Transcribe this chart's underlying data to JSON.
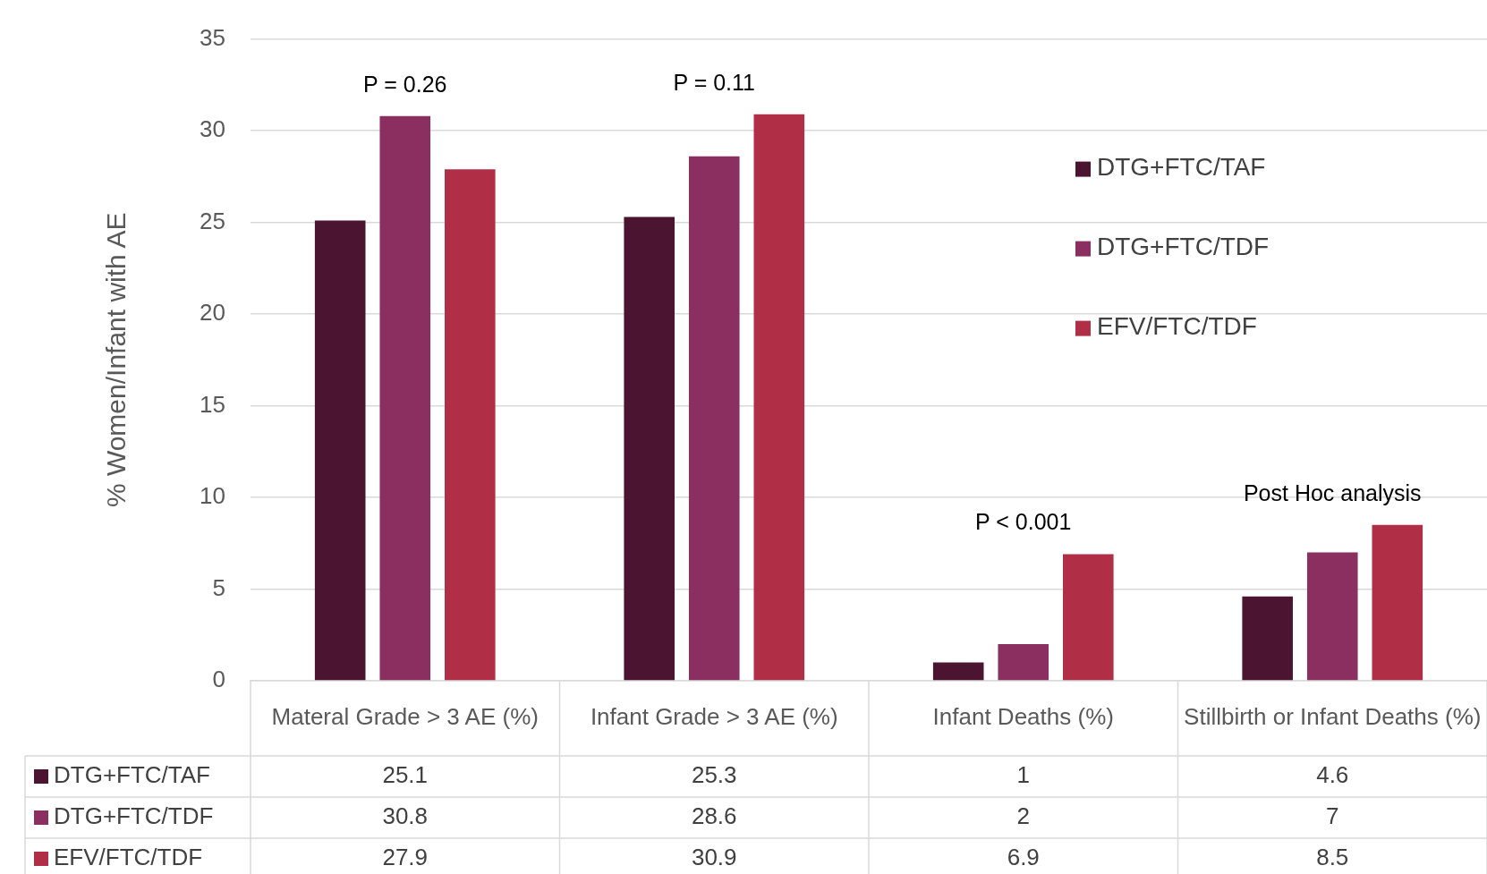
{
  "chart_data": {
    "type": "bar",
    "ylabel": "% Women/Infant with AE",
    "categories": [
      "Materal Grade > 3 AE (%)",
      "Infant Grade > 3 AE (%)",
      "Infant Deaths (%)",
      "Stillbirth or Infant Deaths (%)"
    ],
    "series": [
      {
        "name": "DTG+FTC/TAF",
        "color": "#4b1431",
        "values": [
          25.1,
          25.3,
          1,
          4.6
        ]
      },
      {
        "name": "DTG+FTC/TDF",
        "color": "#8b2e60",
        "values": [
          30.8,
          28.6,
          2,
          7
        ]
      },
      {
        "name": "EFV/FTC/TDF",
        "color": "#b02f47",
        "values": [
          27.9,
          30.9,
          6.9,
          8.5
        ]
      }
    ],
    "ylim": [
      0,
      35
    ],
    "yticks": [
      0,
      5,
      10,
      15,
      20,
      25,
      30,
      35
    ],
    "grid": "y",
    "legend": "right",
    "data_labels": true,
    "annotations": [
      "P = 0.26",
      "P = 0.11",
      "P < 0.001",
      "Post Hoc analysis"
    ]
  }
}
